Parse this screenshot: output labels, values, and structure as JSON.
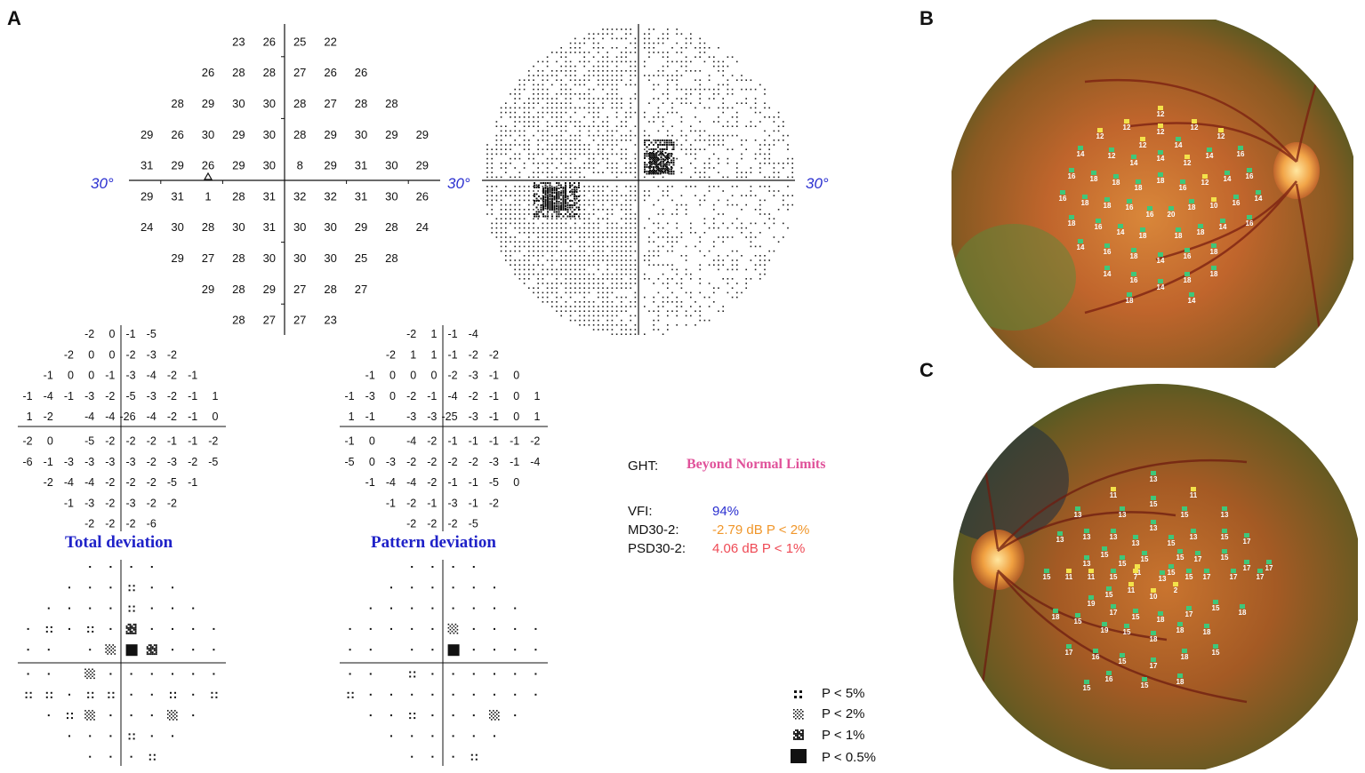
{
  "panels": {
    "a": "A",
    "b": "B",
    "c": "C"
  },
  "degree_label": "30°",
  "threshold_values": [
    [
      null,
      null,
      null,
      23,
      26,
      25,
      22,
      null,
      null,
      null
    ],
    [
      null,
      null,
      26,
      28,
      28,
      27,
      26,
      26,
      null,
      null
    ],
    [
      null,
      28,
      29,
      30,
      30,
      28,
      27,
      28,
      28,
      null
    ],
    [
      29,
      26,
      30,
      29,
      30,
      28,
      29,
      30,
      29,
      29
    ],
    [
      31,
      29,
      26,
      29,
      30,
      8,
      29,
      31,
      30,
      29
    ],
    [
      29,
      31,
      1,
      28,
      31,
      32,
      32,
      31,
      30,
      26
    ],
    [
      24,
      30,
      28,
      30,
      31,
      30,
      30,
      29,
      28,
      24
    ],
    [
      null,
      29,
      27,
      28,
      30,
      30,
      30,
      25,
      28,
      null
    ],
    [
      null,
      null,
      29,
      28,
      29,
      27,
      28,
      27,
      null,
      null
    ],
    [
      null,
      null,
      null,
      28,
      27,
      27,
      23,
      null,
      null,
      null
    ]
  ],
  "total_deviation": {
    "title": "Total deviation",
    "values": [
      [
        null,
        null,
        null,
        -2,
        0,
        -1,
        -5,
        null,
        null,
        null
      ],
      [
        null,
        null,
        -2,
        0,
        0,
        -2,
        -3,
        -2,
        null,
        null
      ],
      [
        null,
        -1,
        0,
        0,
        -1,
        -3,
        -4,
        -2,
        -1,
        null
      ],
      [
        -1,
        -4,
        -1,
        -3,
        -2,
        -5,
        -3,
        -2,
        -1,
        1
      ],
      [
        1,
        -2,
        null,
        -4,
        -4,
        -26,
        -4,
        -2,
        -1,
        0
      ],
      [
        -2,
        0,
        null,
        -5,
        -2,
        -2,
        -2,
        -1,
        -1,
        -2
      ],
      [
        -6,
        -1,
        -3,
        -3,
        -3,
        -3,
        -2,
        -3,
        -2,
        -5
      ],
      [
        null,
        -2,
        -4,
        -4,
        -2,
        -2,
        -2,
        -5,
        -1,
        null
      ],
      [
        null,
        null,
        -1,
        -3,
        -2,
        -3,
        -2,
        -2,
        null,
        null
      ],
      [
        null,
        null,
        null,
        -2,
        -2,
        -2,
        -6,
        null,
        null,
        null
      ]
    ]
  },
  "pattern_deviation": {
    "title": "Pattern deviation",
    "values": [
      [
        null,
        null,
        null,
        -2,
        1,
        -1,
        -4,
        null,
        null,
        null
      ],
      [
        null,
        null,
        -2,
        1,
        1,
        -1,
        -2,
        -2,
        null,
        null
      ],
      [
        null,
        -1,
        0,
        0,
        0,
        -2,
        -3,
        -1,
        0,
        null
      ],
      [
        -1,
        -3,
        0,
        -2,
        -1,
        -4,
        -2,
        -1,
        0,
        1
      ],
      [
        1,
        -1,
        null,
        -3,
        -3,
        -25,
        -3,
        -1,
        0,
        1
      ],
      [
        -1,
        0,
        null,
        -4,
        -2,
        -1,
        -1,
        -1,
        -1,
        -2
      ],
      [
        -5,
        0,
        -3,
        -2,
        -2,
        -2,
        -2,
        -3,
        -1,
        -4
      ],
      [
        null,
        -1,
        -4,
        -4,
        -2,
        -1,
        -1,
        -5,
        0,
        null
      ],
      [
        null,
        null,
        -1,
        -2,
        -1,
        -3,
        -1,
        -2,
        null,
        null
      ],
      [
        null,
        null,
        null,
        -2,
        -2,
        -2,
        -5,
        null,
        null,
        null
      ]
    ]
  },
  "ght": {
    "label": "GHT:",
    "value": "Beyond Normal Limits"
  },
  "stats": [
    {
      "label": "VFI:",
      "value": "94%",
      "color": "#2a2fd0"
    },
    {
      "label": "MD30-2:",
      "value": "-2.79 dB P < 2%",
      "color": "#f0962a"
    },
    {
      "label": "PSD30-2:",
      "value": "4.06 dB P < 1%",
      "color": "#ef4a55"
    }
  ],
  "legend": [
    {
      "symbol": "p5",
      "label": "P < 5%"
    },
    {
      "symbol": "p2",
      "label": "P < 2%"
    },
    {
      "symbol": "p1",
      "label": "P < 1%"
    },
    {
      "symbol": "p05",
      "label": "P < 0.5%"
    }
  ],
  "fundus_b_markers": [
    {
      "label": "12",
      "c": "y"
    },
    {
      "label": "12",
      "c": "y"
    },
    {
      "label": "12",
      "c": "y"
    },
    {
      "label": "12",
      "c": "y"
    },
    {
      "label": "12",
      "c": "y"
    },
    {
      "label": "12",
      "c": "y"
    },
    {
      "label": "12",
      "c": "y"
    },
    {
      "label": "14",
      "c": "g"
    },
    {
      "label": "14",
      "c": "g"
    },
    {
      "label": "16",
      "c": "g"
    },
    {
      "label": "12",
      "c": "g"
    },
    {
      "label": "14",
      "c": "g"
    },
    {
      "label": "14",
      "c": "g"
    },
    {
      "label": "12",
      "c": "y"
    },
    {
      "label": "14",
      "c": "g"
    },
    {
      "label": "16",
      "c": "g"
    },
    {
      "label": "16",
      "c": "g"
    },
    {
      "label": "18",
      "c": "g"
    },
    {
      "label": "14",
      "c": "g"
    },
    {
      "label": "18",
      "c": "g"
    },
    {
      "label": "12",
      "c": "y"
    },
    {
      "label": "18",
      "c": "g"
    },
    {
      "label": "16",
      "c": "g"
    },
    {
      "label": "18",
      "c": "g"
    },
    {
      "label": "16",
      "c": "g"
    },
    {
      "label": "14",
      "c": "g"
    },
    {
      "label": "18",
      "c": "g"
    },
    {
      "label": "16",
      "c": "g"
    },
    {
      "label": "18",
      "c": "g"
    },
    {
      "label": "10",
      "c": "y"
    },
    {
      "label": "16",
      "c": "g"
    },
    {
      "label": "18",
      "c": "g"
    },
    {
      "label": "16",
      "c": "g"
    },
    {
      "label": "20",
      "c": "g"
    },
    {
      "label": "18",
      "c": "g"
    },
    {
      "label": "16",
      "c": "g"
    },
    {
      "label": "16",
      "c": "g"
    },
    {
      "label": "14",
      "c": "g"
    },
    {
      "label": "14",
      "c": "g"
    },
    {
      "label": "18",
      "c": "g"
    },
    {
      "label": "18",
      "c": "g"
    },
    {
      "label": "18",
      "c": "g"
    },
    {
      "label": "14",
      "c": "g"
    },
    {
      "label": "16",
      "c": "g"
    },
    {
      "label": "18",
      "c": "g"
    },
    {
      "label": "18",
      "c": "g"
    },
    {
      "label": "16",
      "c": "g"
    },
    {
      "label": "14",
      "c": "g"
    },
    {
      "label": "14",
      "c": "g"
    },
    {
      "label": "18",
      "c": "g"
    },
    {
      "label": "16",
      "c": "g"
    },
    {
      "label": "18",
      "c": "g"
    },
    {
      "label": "14",
      "c": "g"
    },
    {
      "label": "18",
      "c": "g"
    },
    {
      "label": "14",
      "c": "g"
    }
  ],
  "fundus_c_markers": [
    {
      "label": "11",
      "c": "y"
    },
    {
      "label": "13",
      "c": "g"
    },
    {
      "label": "11",
      "c": "y"
    },
    {
      "label": "13",
      "c": "g"
    },
    {
      "label": "13",
      "c": "g"
    },
    {
      "label": "15",
      "c": "g"
    },
    {
      "label": "15",
      "c": "g"
    },
    {
      "label": "13",
      "c": "g"
    },
    {
      "label": "13",
      "c": "g"
    },
    {
      "label": "13",
      "c": "g"
    },
    {
      "label": "13",
      "c": "g"
    },
    {
      "label": "13",
      "c": "g"
    },
    {
      "label": "13",
      "c": "g"
    },
    {
      "label": "15",
      "c": "g"
    },
    {
      "label": "13",
      "c": "g"
    },
    {
      "label": "15",
      "c": "g"
    },
    {
      "label": "15",
      "c": "g"
    },
    {
      "label": "17",
      "c": "g"
    },
    {
      "label": "15",
      "c": "g"
    },
    {
      "label": "17",
      "c": "g"
    },
    {
      "label": "15",
      "c": "g"
    },
    {
      "label": "13",
      "c": "g"
    },
    {
      "label": "15",
      "c": "g"
    },
    {
      "label": "15",
      "c": "g"
    },
    {
      "label": "11",
      "c": "y"
    },
    {
      "label": "15",
      "c": "g"
    },
    {
      "label": "17",
      "c": "g"
    },
    {
      "label": "17",
      "c": "g"
    },
    {
      "label": "15",
      "c": "g"
    },
    {
      "label": "11",
      "c": "y"
    },
    {
      "label": "11",
      "c": "y"
    },
    {
      "label": "15",
      "c": "g"
    },
    {
      "label": "7",
      "c": "y"
    },
    {
      "label": "13",
      "c": "g"
    },
    {
      "label": "15",
      "c": "g"
    },
    {
      "label": "17",
      "c": "g"
    },
    {
      "label": "17",
      "c": "g"
    },
    {
      "label": "17",
      "c": "g"
    },
    {
      "label": "15",
      "c": "g"
    },
    {
      "label": "11",
      "c": "y"
    },
    {
      "label": "10",
      "c": "y"
    },
    {
      "label": "2",
      "c": "y"
    },
    {
      "label": "19",
      "c": "g"
    },
    {
      "label": "17",
      "c": "g"
    },
    {
      "label": "15",
      "c": "g"
    },
    {
      "label": "18",
      "c": "g"
    },
    {
      "label": "17",
      "c": "g"
    },
    {
      "label": "15",
      "c": "g"
    },
    {
      "label": "18",
      "c": "g"
    },
    {
      "label": "18",
      "c": "g"
    },
    {
      "label": "15",
      "c": "g"
    },
    {
      "label": "19",
      "c": "g"
    },
    {
      "label": "15",
      "c": "g"
    },
    {
      "label": "18",
      "c": "g"
    },
    {
      "label": "18",
      "c": "g"
    },
    {
      "label": "18",
      "c": "g"
    },
    {
      "label": "17",
      "c": "g"
    },
    {
      "label": "16",
      "c": "g"
    },
    {
      "label": "15",
      "c": "g"
    },
    {
      "label": "17",
      "c": "g"
    },
    {
      "label": "18",
      "c": "g"
    },
    {
      "label": "15",
      "c": "g"
    },
    {
      "label": "16",
      "c": "g"
    },
    {
      "label": "15",
      "c": "g"
    },
    {
      "label": "18",
      "c": "g"
    },
    {
      "label": "15",
      "c": "g"
    }
  ]
}
